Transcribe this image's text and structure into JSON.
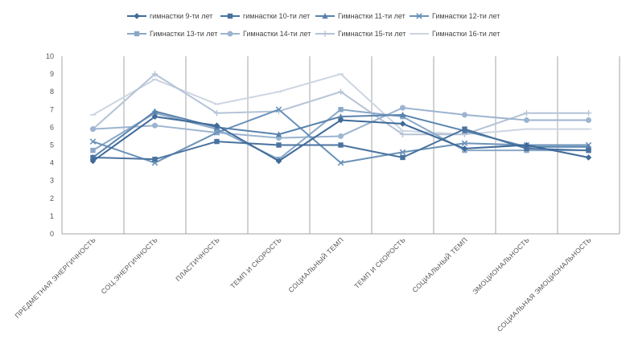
{
  "chart_data": {
    "type": "line",
    "title": "",
    "xlabel": "",
    "ylabel": "",
    "ylim": [
      0,
      10
    ],
    "yticks": [
      0,
      1,
      2,
      3,
      4,
      5,
      6,
      7,
      8,
      9,
      10
    ],
    "grid": "vertical",
    "legend_position": "top",
    "categories": [
      "ПРЕДМЕТНАЯ ЭНЕРГИЧНОСТЬ",
      "СОЦ.ЭНЕРГИЧНОСТЬ",
      "ПЛАСТИЧНОСТЬ",
      "ТЕМП И СКОРОСТЬ",
      "СОЦИАЛЬНЫЙ ТЕМП",
      "ТЕМП И СКОРОСТЬ",
      "СОЦИАЛЬНЫЙ ТЕМП",
      "ЭМОЦИОНАЛЬНОСТЬ",
      "СОЦИАЛЬНАЯ ЭМОЦИОНАЛЬНОСТЬ"
    ],
    "series": [
      {
        "name": "гимнастки 9-ти лет",
        "color": "#3f6a9a",
        "marker": "diamond",
        "values": [
          4.1,
          6.6,
          6.1,
          4.1,
          6.4,
          6.2,
          4.8,
          5.0,
          4.3
        ]
      },
      {
        "name": "гимнастки 10-ти лет",
        "color": "#4a739f",
        "marker": "square",
        "values": [
          4.3,
          4.2,
          5.2,
          5.0,
          5.0,
          4.3,
          5.9,
          4.8,
          4.7
        ]
      },
      {
        "name": "Гимнастки 11-ти лет",
        "color": "#5a83ad",
        "marker": "triangle",
        "values": [
          4.3,
          6.9,
          6.0,
          5.6,
          6.6,
          6.7,
          5.8,
          4.9,
          4.9
        ]
      },
      {
        "name": "Гимнастки 12-ти лет",
        "color": "#6a92b8",
        "marker": "x",
        "values": [
          5.2,
          4.0,
          5.7,
          7.0,
          4.0,
          4.6,
          5.1,
          5.0,
          5.0
        ]
      },
      {
        "name": "Гимнастки 13-ти лет",
        "color": "#8aa8c8",
        "marker": "square",
        "values": [
          4.7,
          6.8,
          5.9,
          4.2,
          7.0,
          6.6,
          4.7,
          4.7,
          4.7
        ]
      },
      {
        "name": "Гимнастки 14-ти лет",
        "color": "#9cb4d0",
        "marker": "circle",
        "values": [
          5.9,
          6.1,
          5.7,
          5.4,
          5.5,
          7.1,
          6.7,
          6.4,
          6.4
        ]
      },
      {
        "name": "Гимнастки 15-ти лет",
        "color": "#b4c3d6",
        "marker": "plus",
        "values": [
          5.9,
          9.0,
          6.8,
          6.9,
          8.0,
          5.6,
          5.6,
          6.8,
          6.8
        ]
      },
      {
        "name": "Гимнастки 16-ти лет",
        "color": "#ccd5e1",
        "marker": "dash",
        "values": [
          6.7,
          8.7,
          7.3,
          8.0,
          9.0,
          5.8,
          5.6,
          5.9,
          5.9
        ]
      }
    ]
  }
}
